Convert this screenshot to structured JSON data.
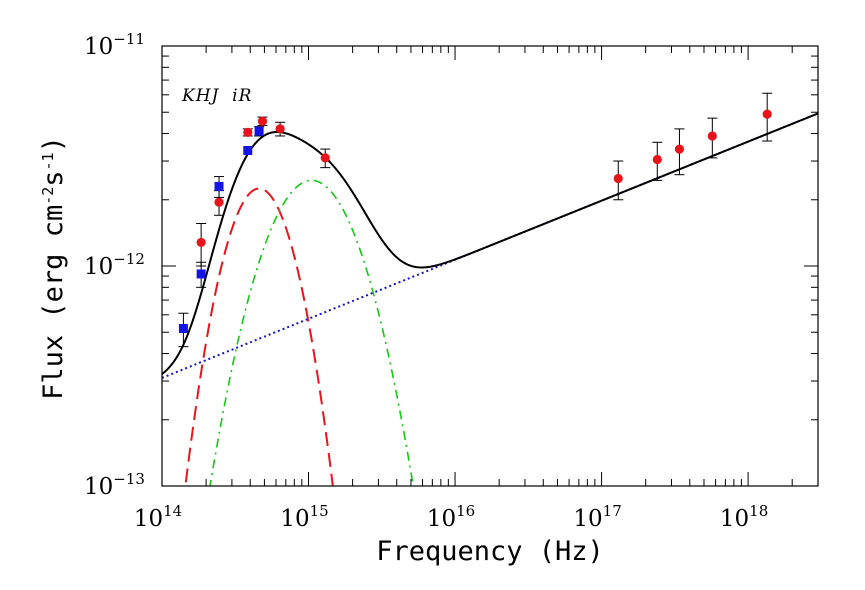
{
  "chart_data": {
    "type": "scatter",
    "xscale": "log",
    "yscale": "log",
    "xlabel": "Frequency (Hz)",
    "ylabel_parts": [
      "Flux (erg cm",
      "-2",
      "s",
      "-1",
      ")"
    ],
    "xlim": [
      100000000000000.0,
      3e+18
    ],
    "ylim": [
      1e-13,
      1e-11
    ],
    "x_ticks": [
      {
        "value": 100000000000000.0,
        "base": "10",
        "exp": "14"
      },
      {
        "value": 1000000000000000.0,
        "base": "10",
        "exp": "15"
      },
      {
        "value": 1e+16,
        "base": "10",
        "exp": "16"
      },
      {
        "value": 1e+17,
        "base": "10",
        "exp": "17"
      },
      {
        "value": 1e+18,
        "base": "10",
        "exp": "18"
      }
    ],
    "y_ticks": [
      {
        "value": 1e-13,
        "base": "10",
        "exp": "−13"
      },
      {
        "value": 1e-12,
        "base": "10",
        "exp": "−12"
      },
      {
        "value": 1e-11,
        "base": "10",
        "exp": "−11"
      }
    ],
    "band_label": "KHJ  iR",
    "series": [
      {
        "name": "optical-red",
        "marker": "circle",
        "color": "#e8141c",
        "points": [
          {
            "x": 185000000000000.0,
            "y": 1.28e-12,
            "err": 2.8e-13
          },
          {
            "x": 245000000000000.0,
            "y": 1.95e-12,
            "err": 2.5e-13
          },
          {
            "x": 385000000000000.0,
            "y": 4.05e-12,
            "err": 1.5e-13
          },
          {
            "x": 485000000000000.0,
            "y": 4.55e-12,
            "err": 2e-13
          },
          {
            "x": 640000000000000.0,
            "y": 4.2e-12,
            "err": 3e-13
          },
          {
            "x": 1300000000000000.0,
            "y": 3.1e-12,
            "err": 3e-13
          }
        ]
      },
      {
        "name": "optical-blue",
        "marker": "square",
        "color": "#1414e8",
        "points": [
          {
            "x": 140000000000000.0,
            "y": 5.2e-13,
            "err": 9e-14
          },
          {
            "x": 185000000000000.0,
            "y": 9.2e-13,
            "err": 1.2e-13
          },
          {
            "x": 245000000000000.0,
            "y": 2.3e-12,
            "err": 2.5e-13
          },
          {
            "x": 385000000000000.0,
            "y": 3.35e-12,
            "err": 0
          },
          {
            "x": 460000000000000.0,
            "y": 4.1e-12,
            "err": 2e-13
          }
        ]
      },
      {
        "name": "x-ray",
        "marker": "circle",
        "color": "#e8141c",
        "points": [
          {
            "x": 1.3e+17,
            "y": 2.5e-12,
            "err": 5e-13
          },
          {
            "x": 2.4e+17,
            "y": 3.05e-12,
            "err": 6e-13
          },
          {
            "x": 3.4e+17,
            "y": 3.4e-12,
            "err": 8e-13
          },
          {
            "x": 5.7e+17,
            "y": 3.9e-12,
            "err": 8e-13
          },
          {
            "x": 1.35e+18,
            "y": 4.9e-12,
            "err": 1.2e-12
          }
        ]
      }
    ],
    "models": [
      {
        "name": "power-law",
        "style": "dotted",
        "color": "#1414c8",
        "anchor": {
          "x": 100000000000000.0,
          "y": 3.1e-13
        },
        "slope": 0.2685
      },
      {
        "name": "red-component",
        "style": "dashed",
        "color": "#e8141c",
        "peak": {
          "x": 460000000000000.0,
          "y": 2.25e-12
        },
        "width_dex": 0.306
      },
      {
        "name": "green-component",
        "style": "dash-dot",
        "color": "#14c814",
        "peak": {
          "x": 1050000000000000.0,
          "y": 2.45e-12
        },
        "width_dex": 0.416
      },
      {
        "name": "total-model",
        "style": "solid",
        "color": "#000000"
      }
    ]
  }
}
